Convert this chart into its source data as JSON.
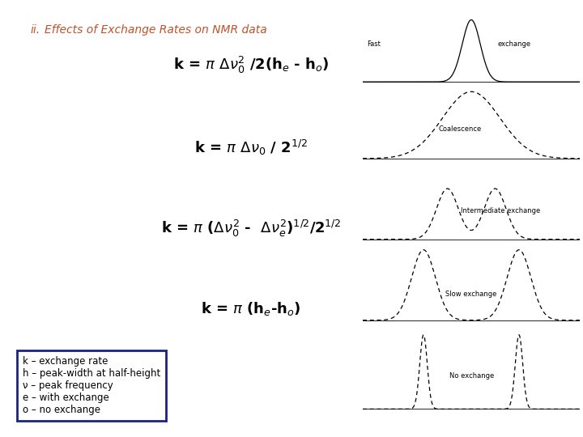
{
  "title_num": "ii.",
  "title_text": "   Effects of Exchange Rates on NMR data",
  "title_color": "#c0522a",
  "bg_color": "#ffffff",
  "eq1": "k = $\\pi$ $\\Delta\\nu_0^2$ /2(h$_e$ - h$_o$)",
  "eq2": "k = $\\pi$ $\\Delta\\nu_0$ / 2$^{1/2}$",
  "eq3": "k = $\\pi$ ($\\Delta\\nu_0^2$ -  $\\Delta\\nu_e^2$)$^{1/2}$/2$^{1/2}$",
  "eq4": "k = $\\pi$ (h$_e$-h$_o$)",
  "eq_fontsize": 13,
  "legend_text": "k – exchange rate\nh – peak-width at half-height\nν – peak frequency\ne – with exchange\no – no exchange",
  "box_color": "#1a237e",
  "label_fast_l": "Fast",
  "label_fast_r": "exchange",
  "label_coal": "Coalescence",
  "label_inter": "Intermediate exchange",
  "label_slow": "Slow exchange",
  "label_noex": "No exchange"
}
